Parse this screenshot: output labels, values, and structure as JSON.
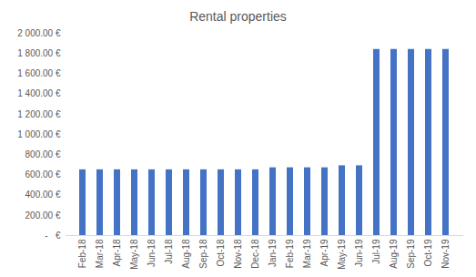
{
  "chart_data": {
    "type": "bar",
    "title": "Rental properties",
    "categories": [
      "Feb-18",
      "Mar-18",
      "Apr-18",
      "May-18",
      "Jun-18",
      "Jul-18",
      "Aug-18",
      "Sep-18",
      "Oct-18",
      "Nov-18",
      "Dec-18",
      "Jan-19",
      "Feb-19",
      "Mar-19",
      "Apr-19",
      "May-19",
      "Jun-19",
      "Jul-19",
      "Aug-19",
      "Sep-19",
      "Oct-19",
      "Nov-19"
    ],
    "values": [
      650,
      650,
      650,
      650,
      650,
      650,
      650,
      650,
      650,
      650,
      650,
      670,
      670,
      670,
      670,
      690,
      690,
      1840,
      1840,
      1840,
      1840,
      1840
    ],
    "color": "#4472c4",
    "ylim": [
      0,
      2000
    ],
    "yticks": [
      {
        "value": 0,
        "label": "-   €"
      },
      {
        "value": 200,
        "label": "200.00 €"
      },
      {
        "value": 400,
        "label": "400.00 €"
      },
      {
        "value": 600,
        "label": "600.00 €"
      },
      {
        "value": 800,
        "label": "800.00 €"
      },
      {
        "value": 1000,
        "label": "1 000.00 €"
      },
      {
        "value": 1200,
        "label": "1 200.00 €"
      },
      {
        "value": 1400,
        "label": "1 400.00 €"
      },
      {
        "value": 1600,
        "label": "1 600.00 €"
      },
      {
        "value": 1800,
        "label": "1 800.00 €"
      },
      {
        "value": 2000,
        "label": "2 000.00 €"
      }
    ],
    "grid": false
  }
}
